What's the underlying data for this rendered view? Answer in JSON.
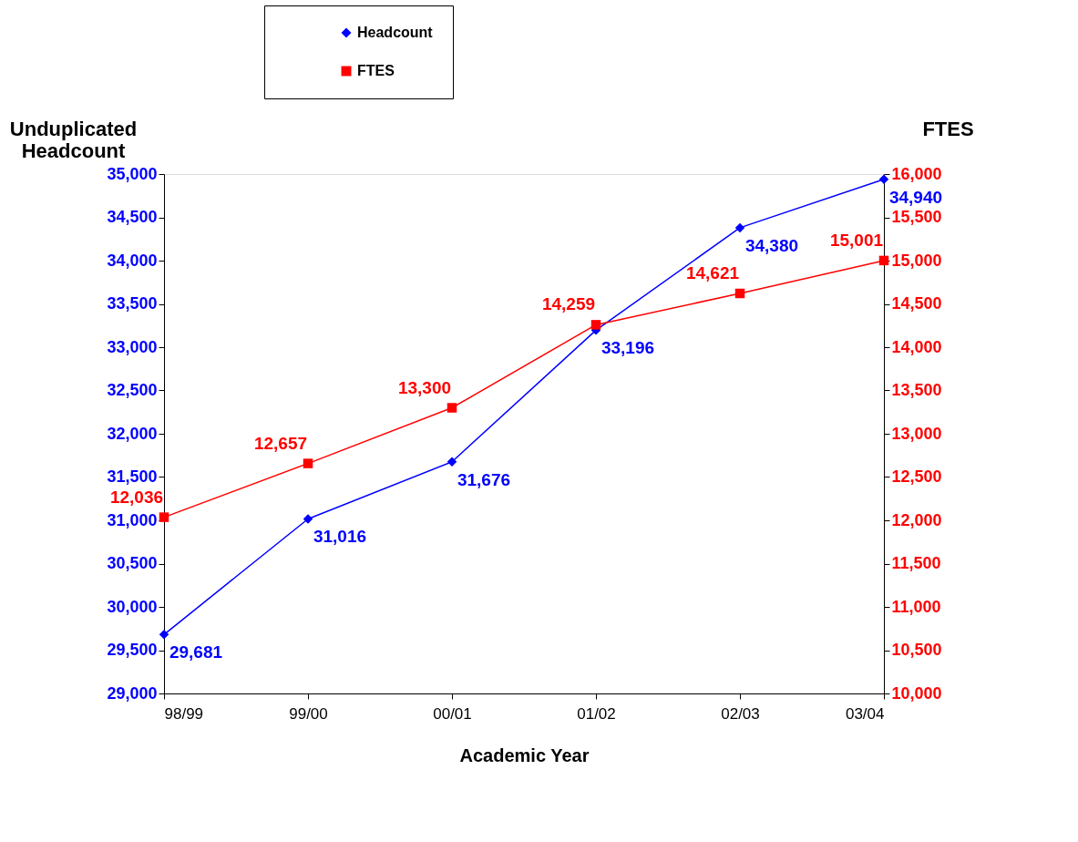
{
  "chart_data": {
    "type": "line",
    "xlabel": "Academic Year",
    "ylabel": "Unduplicated Headcount",
    "y2label": "FTES",
    "categories": [
      "98/99",
      "99/00",
      "00/01",
      "01/02",
      "02/03",
      "03/04"
    ],
    "series": [
      {
        "name": "Headcount",
        "color": "#0000ff",
        "marker": "diamond",
        "axis": "y",
        "values": [
          29681,
          31016,
          31676,
          33196,
          34380,
          34940
        ],
        "value_labels": [
          "29,681",
          "31,016",
          "31,676",
          "33,196",
          "34,380",
          "34,940"
        ]
      },
      {
        "name": "FTES",
        "color": "#ff0000",
        "marker": "square",
        "axis": "y2",
        "values": [
          12036,
          12657,
          13300,
          14259,
          14621,
          15001
        ],
        "value_labels": [
          "12,036",
          "12,657",
          "13,300",
          "14,259",
          "14,621",
          "15,001"
        ]
      }
    ],
    "ylim": [
      29000,
      35000
    ],
    "yticks": [
      {
        "value": 29000,
        "label": "29,000"
      },
      {
        "value": 29500,
        "label": "29,500"
      },
      {
        "value": 30000,
        "label": "30,000"
      },
      {
        "value": 30500,
        "label": "30,500"
      },
      {
        "value": 31000,
        "label": "31,000"
      },
      {
        "value": 31500,
        "label": "31,500"
      },
      {
        "value": 32000,
        "label": "32,000"
      },
      {
        "value": 32500,
        "label": "32,500"
      },
      {
        "value": 33000,
        "label": "33,000"
      },
      {
        "value": 33500,
        "label": "33,500"
      },
      {
        "value": 34000,
        "label": "34,000"
      },
      {
        "value": 34500,
        "label": "34,500"
      },
      {
        "value": 35000,
        "label": "35,000"
      }
    ],
    "y2lim": [
      10000,
      16000
    ],
    "y2ticks": [
      {
        "value": 10000,
        "label": "10,000"
      },
      {
        "value": 10500,
        "label": "10,500"
      },
      {
        "value": 11000,
        "label": "11,000"
      },
      {
        "value": 11500,
        "label": "11,500"
      },
      {
        "value": 12000,
        "label": "12,000"
      },
      {
        "value": 12500,
        "label": "12,500"
      },
      {
        "value": 13000,
        "label": "13,000"
      },
      {
        "value": 13500,
        "label": "13,500"
      },
      {
        "value": 14000,
        "label": "14,000"
      },
      {
        "value": 14500,
        "label": "14,500"
      },
      {
        "value": 15000,
        "label": "15,000"
      },
      {
        "value": 15500,
        "label": "15,500"
      },
      {
        "value": 16000,
        "label": "16,000"
      }
    ],
    "grid": false,
    "legend": "top",
    "line_style": "solid"
  }
}
